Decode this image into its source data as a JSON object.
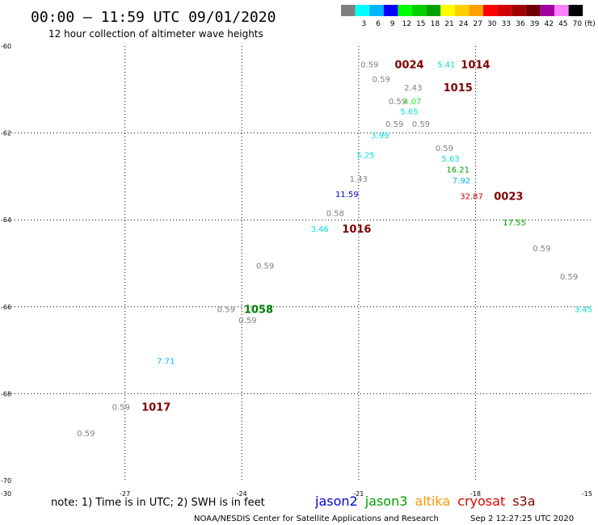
{
  "header": {
    "title": "00:00 – 11:59 UTC 09/01/2020",
    "subtitle": "12 hour collection of altimeter wave heights",
    "unit": "(ft)"
  },
  "legend": {
    "bins": [
      {
        "label": "",
        "color": "#7f7f7f"
      },
      {
        "label": "3",
        "color": "#00ffff"
      },
      {
        "label": "6",
        "color": "#00b4ff"
      },
      {
        "label": "9",
        "color": "#0000ff"
      },
      {
        "label": "12",
        "color": "#00ff00"
      },
      {
        "label": "15",
        "color": "#00d000"
      },
      {
        "label": "18",
        "color": "#00a000"
      },
      {
        "label": "21",
        "color": "#ffff00"
      },
      {
        "label": "24",
        "color": "#ffd000"
      },
      {
        "label": "27",
        "color": "#ffa000"
      },
      {
        "label": "30",
        "color": "#ff0000"
      },
      {
        "label": "33",
        "color": "#d00000"
      },
      {
        "label": "36",
        "color": "#a00000"
      },
      {
        "label": "39",
        "color": "#700000"
      },
      {
        "label": "42",
        "color": "#a000a0"
      },
      {
        "label": "45",
        "color": "#ff80ff"
      },
      {
        "label": "70",
        "color": "#000000"
      }
    ]
  },
  "footer": {
    "note": "note: 1) Time is in UTC; 2) SWH is in feet",
    "satellites": [
      {
        "name": "jason2",
        "color": "#0000dd"
      },
      {
        "name": "jason3",
        "color": "#00a000"
      },
      {
        "name": "altika",
        "color": "#ff9900"
      },
      {
        "name": "cryosat",
        "color": "#dd0000"
      },
      {
        "name": "s3a",
        "color": "#800000"
      }
    ],
    "credit": "NOAA/NESDIS Center for Satellite Applications and Research",
    "timestamp": "Sep  2 12:27:25 UTC 2020"
  },
  "chart_data": {
    "type": "scatter",
    "xlim": [
      -30,
      -15
    ],
    "ylim": [
      -70,
      -60
    ],
    "x_ticks": [
      "-27",
      "-24",
      "-21",
      "-18",
      "-15"
    ],
    "x_tick_values": [
      -27,
      -24,
      -21,
      -18,
      -15
    ],
    "x_corner_label": "-30",
    "y_ticks": [
      "-60",
      "-62",
      "-64",
      "-66",
      "-68",
      "-70"
    ],
    "y_tick_values": [
      -60,
      -62,
      -64,
      -66,
      -68,
      -70
    ],
    "grid": true,
    "wave_points": [
      {
        "x": -20.72,
        "y": -60.42,
        "label": "0.59",
        "color": "#808080"
      },
      {
        "x": -20.42,
        "y": -60.75,
        "label": "0.59",
        "color": "#808080"
      },
      {
        "x": -18.75,
        "y": -60.42,
        "label": "5.41",
        "color": "#00e0e0"
      },
      {
        "x": -19.6,
        "y": -60.95,
        "label": "2.43",
        "color": "#808080"
      },
      {
        "x": -20.0,
        "y": -61.26,
        "label": "0.59",
        "color": "#808080"
      },
      {
        "x": -19.62,
        "y": -61.26,
        "label": "4.07",
        "color": "#33dd33"
      },
      {
        "x": -19.7,
        "y": -61.5,
        "label": "5.65",
        "color": "#00e0e0"
      },
      {
        "x": -20.08,
        "y": -61.78,
        "label": "0.59",
        "color": "#808080"
      },
      {
        "x": -19.4,
        "y": -61.78,
        "label": "0.59",
        "color": "#808080"
      },
      {
        "x": -20.45,
        "y": -62.04,
        "label": "3.99",
        "color": "#00e0e0"
      },
      {
        "x": -18.8,
        "y": -62.34,
        "label": "0.59",
        "color": "#808080"
      },
      {
        "x": -20.82,
        "y": -62.5,
        "label": "5.25",
        "color": "#00e0e0"
      },
      {
        "x": -18.64,
        "y": -62.58,
        "label": "5.63",
        "color": "#00e0e0"
      },
      {
        "x": -18.45,
        "y": -62.83,
        "label": "16.21",
        "color": "#00a000"
      },
      {
        "x": -21.0,
        "y": -63.05,
        "label": "1.43",
        "color": "#808080"
      },
      {
        "x": -18.36,
        "y": -63.09,
        "label": "7.92",
        "color": "#00b4ff"
      },
      {
        "x": -21.3,
        "y": -63.4,
        "label": "11.59",
        "color": "#0000cc"
      },
      {
        "x": -18.1,
        "y": -63.45,
        "label": "32.87",
        "color": "#d00000"
      },
      {
        "x": -21.6,
        "y": -63.84,
        "label": "0.58",
        "color": "#808080"
      },
      {
        "x": -17.0,
        "y": -64.05,
        "label": "17.55",
        "color": "#00a000"
      },
      {
        "x": -22.0,
        "y": -64.2,
        "label": "3.46",
        "color": "#00e0e0"
      },
      {
        "x": -16.3,
        "y": -64.65,
        "label": "0.59",
        "color": "#808080"
      },
      {
        "x": -23.4,
        "y": -65.05,
        "label": "0.59",
        "color": "#808080"
      },
      {
        "x": -15.6,
        "y": -65.3,
        "label": "0.59",
        "color": "#808080"
      },
      {
        "x": -24.4,
        "y": -66.05,
        "label": "0.59",
        "color": "#808080"
      },
      {
        "x": -15.1,
        "y": -66.05,
        "label": "3.45",
        "color": "#00e0e0"
      },
      {
        "x": -23.85,
        "y": -66.3,
        "label": "0.59",
        "color": "#808080"
      },
      {
        "x": -25.95,
        "y": -67.24,
        "label": "7.71",
        "color": "#00b4ff"
      },
      {
        "x": -27.1,
        "y": -68.3,
        "label": "0.59",
        "color": "#808080"
      },
      {
        "x": -28.0,
        "y": -68.9,
        "label": "0.59",
        "color": "#808080"
      }
    ],
    "time_labels": [
      {
        "x": -19.7,
        "y": -60.42,
        "label": "0024",
        "color": "#800000"
      },
      {
        "x": -18.0,
        "y": -60.42,
        "label": "1014",
        "color": "#800000"
      },
      {
        "x": -18.45,
        "y": -60.95,
        "label": "1015",
        "color": "#800000"
      },
      {
        "x": -17.15,
        "y": -63.45,
        "label": "0023",
        "color": "#800000"
      },
      {
        "x": -21.05,
        "y": -64.2,
        "label": "1016",
        "color": "#800000"
      },
      {
        "x": -23.57,
        "y": -66.05,
        "label": "1058",
        "color": "#008000"
      },
      {
        "x": -26.2,
        "y": -68.3,
        "label": "1017",
        "color": "#800000"
      }
    ]
  }
}
